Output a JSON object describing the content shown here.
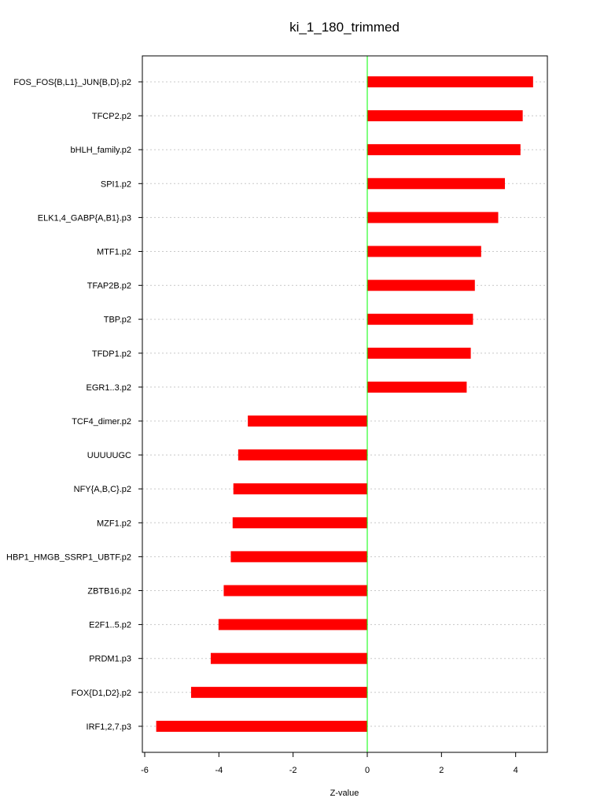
{
  "chart_data": {
    "type": "bar",
    "orientation": "horizontal",
    "title": "ki_1_180_trimmed",
    "xlabel": "Z-value",
    "ylabel": "",
    "xlim": [
      -6.2,
      4.8
    ],
    "xticks": [
      -6,
      -4,
      -2,
      0,
      2,
      4
    ],
    "xtick_labels": [
      "-6",
      "-4",
      "-2",
      "0",
      "2",
      "4"
    ],
    "grid": true,
    "zero_line": true,
    "categories": [
      "FOS_FOS{B,L1}_JUN{B,D}.p2",
      "TFCP2.p2",
      "bHLH_family.p2",
      "SPI1.p2",
      "ELK1,4_GABP{A,B1}.p3",
      "MTF1.p2",
      "TFAP2B.p2",
      "TBP.p2",
      "TFDP1.p2",
      "EGR1..3.p2",
      "TCF4_dimer.p2",
      "UUUUUGC",
      "NFY{A,B,C}.p2",
      "MZF1.p2",
      "HBP1_HMGB_SSRP1_UBTF.p2",
      "ZBTB16.p2",
      "E2F1..5.p2",
      "PRDM1.p3",
      "FOX{D1,D2}.p2",
      "IRF1,2,7.p3"
    ],
    "values": [
      4.47,
      4.19,
      4.13,
      3.71,
      3.53,
      3.07,
      2.9,
      2.85,
      2.79,
      2.68,
      -3.22,
      -3.48,
      -3.61,
      -3.63,
      -3.68,
      -3.87,
      -4.01,
      -4.22,
      -4.75,
      -5.69
    ]
  },
  "colors": {
    "bar": "#ff0000",
    "zero_line": "#00ff00",
    "grid": "#c8c8c8",
    "axis": "#000000"
  }
}
